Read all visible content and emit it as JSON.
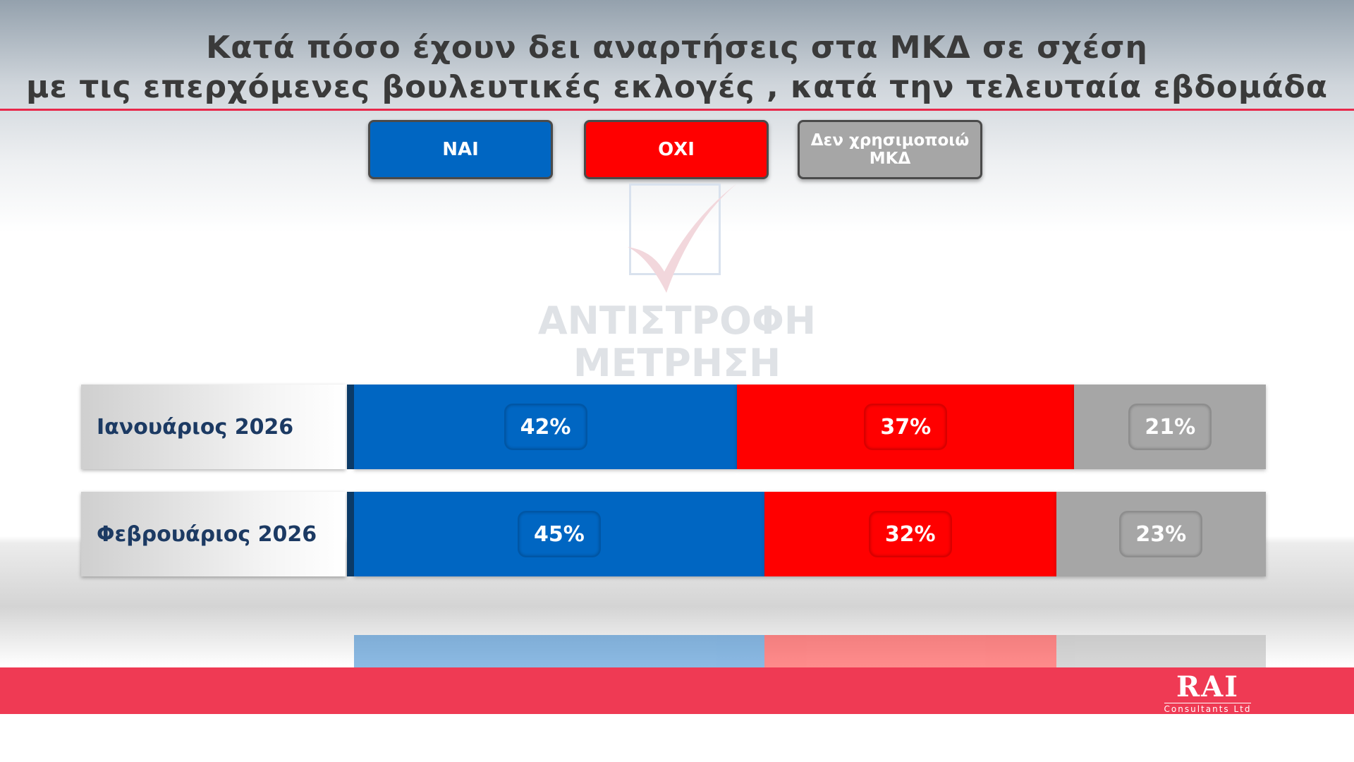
{
  "title": {
    "line1": "Κατά πόσο έχουν δει αναρτήσεις στα ΜΚΔ σε σχέση",
    "line2": "με τις επερχόμενες βουλευτικές εκλογές , κατά την τελευταία εβδομάδα"
  },
  "watermark": {
    "line1": "ΑΝΤΙΣΤΡΟΦΗ",
    "line2": "ΜΕΤΡΗΣΗ"
  },
  "brand": {
    "name": "RAI",
    "sub": "Consultants Ltd"
  },
  "colors": {
    "yes": "#0066c2",
    "no": "#ff0000",
    "na": "#a6a6a6",
    "accent": "#ef3a54"
  },
  "chart_data": {
    "type": "bar",
    "orientation": "horizontal",
    "stacked": true,
    "unit": "%",
    "categories": [
      "Ιανουάριος 2026",
      "Φεβρουάριος 2026"
    ],
    "series": [
      {
        "name": "ΝΑΙ",
        "color": "#0066c2",
        "values": [
          42,
          45
        ],
        "labels": [
          "42%",
          "45%"
        ]
      },
      {
        "name": "ΟΧΙ",
        "color": "#ff0000",
        "values": [
          37,
          32
        ],
        "labels": [
          "37%",
          "32%"
        ]
      },
      {
        "name": "Δεν χρησιμοποιώ ΜΚΔ",
        "color": "#a6a6a6",
        "values": [
          21,
          23
        ],
        "labels": [
          "21%",
          "23%"
        ]
      }
    ],
    "xlim": [
      0,
      100
    ],
    "legend": "top-center",
    "grid": false
  }
}
